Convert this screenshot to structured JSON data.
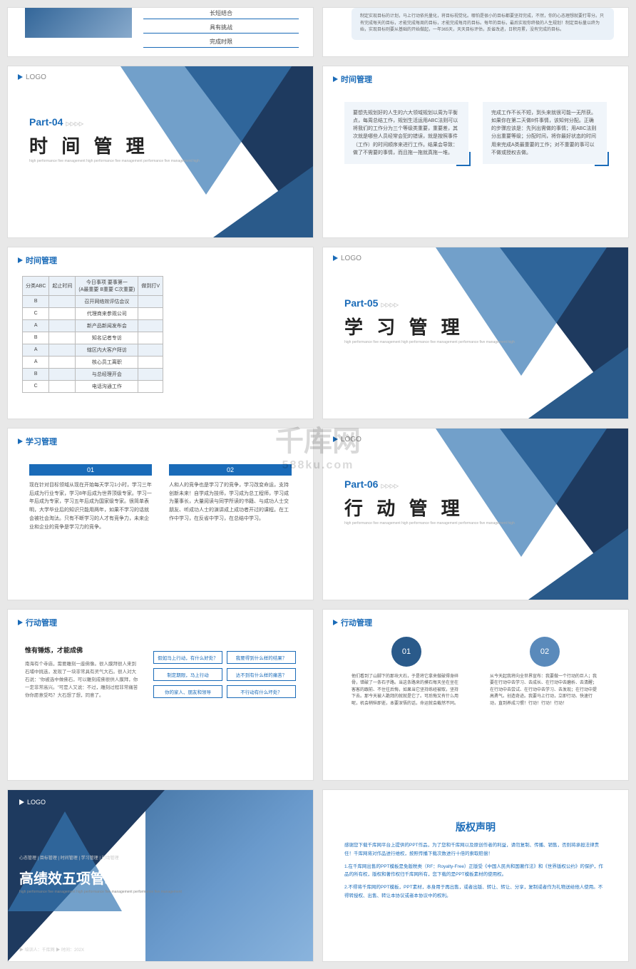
{
  "logo_text": "LOGO",
  "watermark": {
    "main": "千库网",
    "sub": "588ku.com"
  },
  "slide1": {
    "items": [
      "长短结合",
      "具有挑战",
      "完成时限"
    ]
  },
  "slide2": {
    "text": "制定实现目标的计划，马上行动依托量化，将目标视觉化。哪怕是很小的目标都要坚持完成，不然，你的心态理想就要打零分。只有完成每天的目标，才能完成每周的目标，才能完成每月的目标。每年的目标，最后实现你终极的人生规划！制定目标量以终为始，实现目标则要从基础的开始做起，一年365天，天天目标评估，反省改进，日积月累，没有完成的目标。"
  },
  "part04": {
    "label": "Part-04",
    "title": "时 间 管 理",
    "sub": "high performance five management high performance five management\nperformance five management high"
  },
  "time_mgmt": {
    "header": "时间管理",
    "box1": "要想先规划好的人生的六大领域规划以周为平衡点，每周总结工作，规划生活运用ABC法则可以将我们的工作分为三个等级类重要，重要差，其次就是哪些人员经常会犯的错误，就是按照事件（工作）的时间顺序来进行工作。结果会导致：做了不需要的事情，而且拖一拖就真拖一堆。",
    "box2": "完成工作不长不短，到头来就很可能一无所获。如果你在第二天做8件事情，该知何分配。正确的步骤应该是：先列出需做的事情；用ABC法则分出重要等级；分配时间，将你最好状态的时间用来完成A类最重要的工作；对不重要的事可以不做或授权去做。"
  },
  "time_table": {
    "header": "时间管理",
    "cols": [
      "分类ABC",
      "起止时间",
      "今日事项     要事第一\n(A最重要 B重要 C次重要)",
      "做到打V"
    ],
    "rows": [
      {
        "c1": "B",
        "c3": "召开网络效评估会议",
        "alt": true
      },
      {
        "c1": "C",
        "c3": "代理商来参观公司",
        "alt": false
      },
      {
        "c1": "A",
        "c3": "新产品新闻发布会",
        "alt": true
      },
      {
        "c1": "B",
        "c3": "知名记者专访",
        "alt": false
      },
      {
        "c1": "A",
        "c3": "辖区内大客户拜访",
        "alt": true
      },
      {
        "c1": "A",
        "c3": "核心员工离职",
        "alt": false
      },
      {
        "c1": "B",
        "c3": "与总经理开会",
        "alt": true
      },
      {
        "c1": "C",
        "c3": "电话沟通工作",
        "alt": false
      }
    ]
  },
  "part05": {
    "label": "Part-05",
    "title": "学 习 管 理",
    "sub": "high performance five management high performance five management\nperformance five management high"
  },
  "learn_mgmt": {
    "header": "学习管理",
    "col1": {
      "num": "01",
      "text": "现在针对目标领域从现在开始每天学习1小时，学习三年后成为行业专家，学习8年后成为世界顶级专家。学习一年后成为专家，学习五年后成为国家级专家。很简单表明，大学毕业后的知识只能用两年，如果不学习的话就会被社会淘汰。只有不断学习的人才有竞争力，未来企业和企业的竞争是学习力的竞争。"
    },
    "col2": {
      "num": "02",
      "text": "人和人的竞争也是学习了的竞争，学习改变命运，支持创新未来！自学成为技师，学习成为总工程师，学习成为董事长，大量阅读与同学所读的书籍、与成功人士交朋友、听成功人士的演讲成上成功者开过的课程。在工作中学习，在反省中学习，在总结中学习。"
    }
  },
  "part06": {
    "label": "Part-06",
    "title": "行 动 管 理",
    "sub": "high performance five management high performance five management\nperformance five management high"
  },
  "action_mgmt": {
    "header": "行动管理",
    "left_title": "惟有锤炼，才能成佛",
    "left_text": "南海有个寺庙，需要雕刻一座佛像。很人膜拜很人来到石埔中挑选，发现了一块非常具有灵气大石。很人对大石说：\"你被选中做佛石，可以雕刻成佛很供人膜拜，你一定非常高兴。\"可是人又说：不过，雕刻过程非常痛苦你你愿意受吗？大石想了想，同意了。",
    "buttons": [
      "假如马上行动，有什么好处？",
      "我要得到什么样的结果？",
      "制定期限，马上行动",
      "达不到有什么样的痛苦？",
      "你的家人、朋友和领导",
      "不行动有什么坏处？"
    ]
  },
  "action_circles": {
    "header": "行动管理",
    "c1": {
      "num": "01",
      "color": "#2a5a8a",
      "text": "他们看到了山脚下的那块大石，于是将它拿来做破得身碎骨，错破了一条石子路。当这条路来的摸石每天坐在坐在客客的跟前、不住往后悔，如果当它坚持练经被取，坚持下去。那今天被人跪拜的就就是它了。可后悔又有什么用呢，机会稍纵即逝，本要深悟的话，命运就会截然不同。"
    },
    "c2": {
      "num": "02",
      "color": "#5a8abb",
      "text": "从今天起我将向全世界宣布：我要做一个行动的巨人；我要在行动中去学习、去成长、在行动中去磨析、去清醒；在行动中去尝试、在行动中去学习、去发现；在行动中提高勇气。创造奇迹。我要马上行动，立即行动、快速行动，直到养成习惯！行动！行动！行动！"
    }
  },
  "final": {
    "breadcrumb": "心态管理 | 目标管理 | 时间管理 | 学习管理 | 行动管理",
    "title": "高绩效五项管理",
    "sub": "high performance five management high performance five management\nperformance five management",
    "footer": "▶ 培训人：千库网    ▶ 时间：202X"
  },
  "copyright": {
    "title": "版权声明",
    "p1": "感谢您下载千库网平台上提供的PPT作品，为了您和千库网以及原创作者的利益，请勿复制、传播、销售，否则将承担法律责任！千库网将对作品进行维权，按照传播下载次数进行十倍的索取赔偿！",
    "p2": "1.在千库网出售的PPT模板是免版税类（RF：Royalty-Free）正版受《中国人民共和国著作法》和《世界版权公约》的保护，作品的所有权，版权和著作权归千库网所有，您下载的是PPT模板素材的使用权。",
    "p3": "2.不得将千库网的PPT模板，PPT素材，本身用于再出售，或者出版、转让、转让、分享，复制或者作为礼物送给他人使用。不得转授权、出售、转让本协议或者本协议中的权利。"
  }
}
